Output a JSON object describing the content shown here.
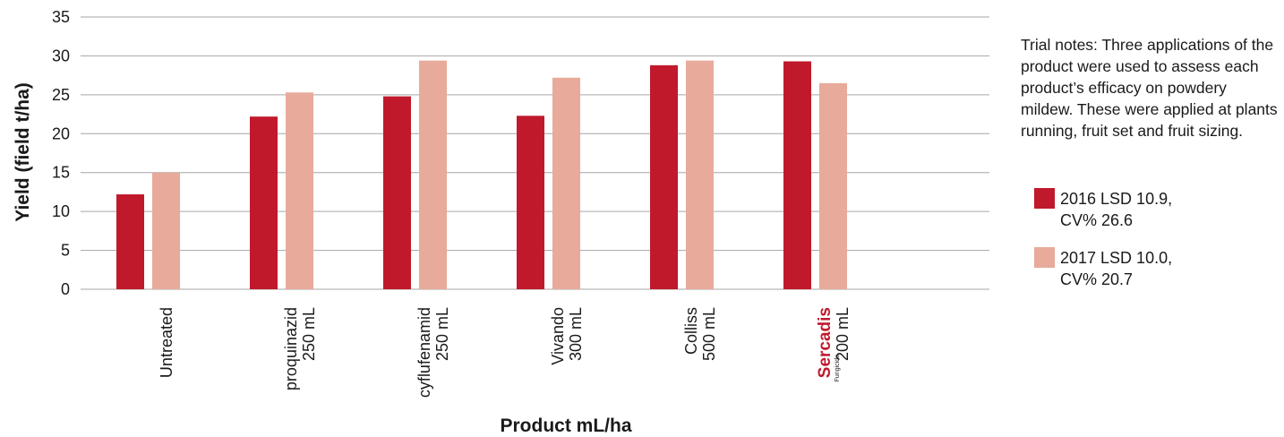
{
  "chart_data": {
    "type": "bar",
    "ylabel": "Yield (field t/ha)",
    "xlabel": "Product mL/ha",
    "ylim": [
      0,
      35
    ],
    "yticks": [
      0,
      5,
      10,
      15,
      20,
      25,
      30,
      35
    ],
    "grid": true,
    "legend_position": "right",
    "categories": [
      {
        "line1": "Untreated",
        "line2": ""
      },
      {
        "line1": "proquinazid",
        "line2": "250 mL"
      },
      {
        "line1": "cyflufenamid",
        "line2": "250 mL"
      },
      {
        "line1": "Vivando",
        "line2": "300 mL"
      },
      {
        "line1": "Colliss",
        "line2": "500 mL"
      },
      {
        "line1": "Sercadis",
        "line1_sub": "Fungicide",
        "line2": "200 mL"
      }
    ],
    "series": [
      {
        "name": "2016 LSD 10.9,\nCV% 26.6",
        "color": "#c0192c",
        "values": [
          12.2,
          22.2,
          24.8,
          22.3,
          28.8,
          29.3
        ]
      },
      {
        "name": "2017 LSD 10.0,\nCV% 20.7",
        "color": "#e8aa9b",
        "values": [
          15.0,
          25.3,
          29.4,
          27.2,
          29.4,
          26.5
        ]
      }
    ]
  },
  "notes": "Trial notes: Three applications of the product were used to assess each product’s efficacy on powdery mildew. These were applied at plants running, fruit set and fruit sizing.",
  "colors": {
    "accent": "#c0192c",
    "light": "#e8aa9b",
    "grid": "#a6a6a6"
  }
}
